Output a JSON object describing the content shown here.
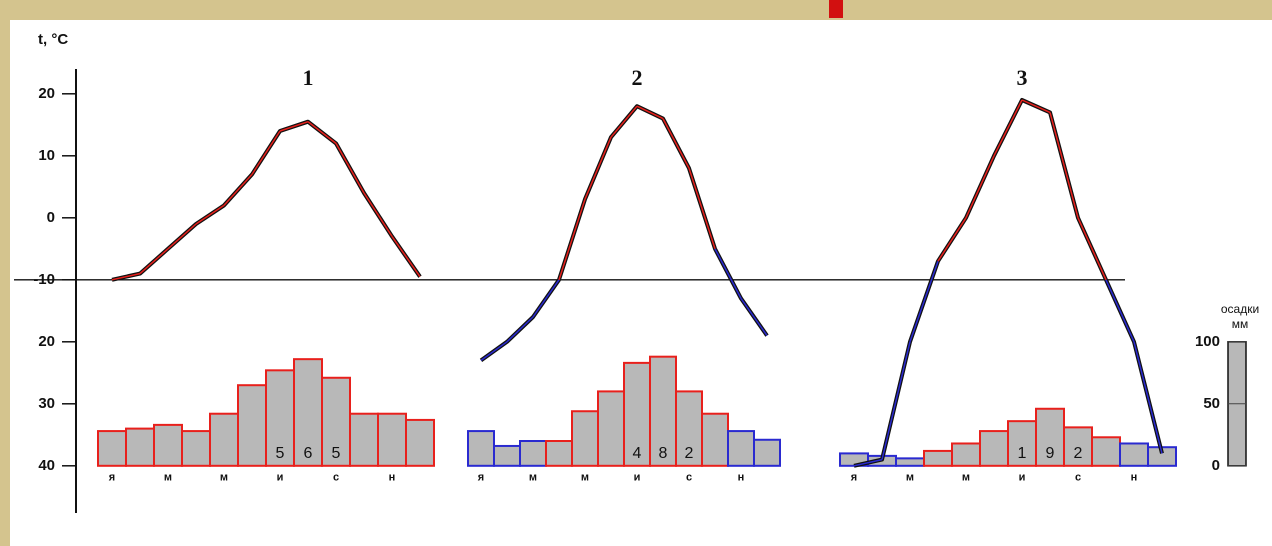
{
  "chart_data": {
    "type": "climograph",
    "y_label": "t, °C",
    "ylim": [
      -46,
      24
    ],
    "yticks": [
      20,
      10,
      0,
      -10,
      {
        "value": -20,
        "label": "20"
      },
      {
        "value": -30,
        "label": "30"
      },
      {
        "value": -40,
        "label": "40"
      }
    ],
    "threshold": -10,
    "y2_label": [
      "осадки",
      "мм"
    ],
    "y2lim": [
      0,
      100
    ],
    "y2ticks": [
      100,
      50,
      0
    ],
    "warm_color": "#e8201c",
    "cold_color": "#2a2ad0",
    "bar_fill": "#b8b8b8",
    "categories": [
      "я",
      null,
      "м",
      null,
      "м",
      null,
      "и",
      null,
      "с",
      null,
      "н",
      null
    ],
    "panels": [
      {
        "title": "1",
        "temperature": [
          -10,
          -9,
          -5,
          -1,
          2,
          7,
          14,
          15.5,
          12,
          4,
          -3,
          -9.5
        ],
        "precipitation": [
          28,
          30,
          33,
          28,
          42,
          65,
          77,
          86,
          71,
          42,
          42,
          37
        ],
        "annual_label": [
          "5",
          "6",
          "5"
        ]
      },
      {
        "title": "2",
        "temperature": [
          -23,
          -20,
          -16,
          -10,
          3,
          13,
          18,
          16,
          8,
          -5,
          -13,
          -19
        ],
        "precipitation": [
          28,
          16,
          20,
          20,
          44,
          60,
          83,
          88,
          60,
          42,
          28,
          21
        ],
        "annual_label": [
          "4",
          "8",
          "2"
        ]
      },
      {
        "title": "3",
        "temperature": [
          -40,
          -39,
          -20,
          -7,
          0,
          10,
          19,
          17,
          0,
          -10,
          -20,
          -38
        ],
        "precipitation": [
          10,
          8,
          6,
          12,
          18,
          28,
          36,
          46,
          31,
          23,
          18,
          15
        ],
        "annual_label": [
          "1",
          "9",
          "2"
        ]
      }
    ]
  }
}
